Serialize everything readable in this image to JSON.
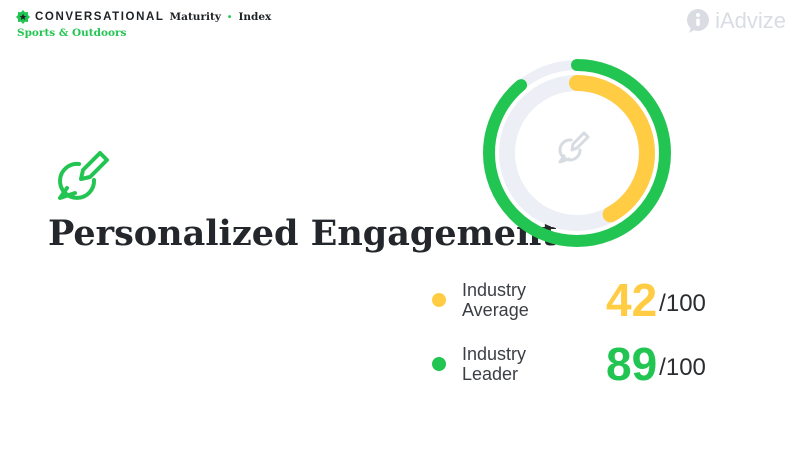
{
  "brand": {
    "name": "CONVERSATIONAL",
    "sub1": "Maturity",
    "separator": "•",
    "sub2": "Index",
    "category": "Sports & Outdoors"
  },
  "logo": {
    "text": "iAdvize"
  },
  "topic": {
    "title": "Personalized Engagement",
    "icon": "chat-pencil-icon"
  },
  "colors": {
    "average": "#ffcc44",
    "leader": "#23c552",
    "track": "#eceff5"
  },
  "chart_data": {
    "type": "radial-progress",
    "max": 100,
    "series": [
      {
        "name": "Industry Average",
        "value": 42
      },
      {
        "name": "Industry Leader",
        "value": 89
      }
    ]
  },
  "legend": [
    {
      "label_line1": "Industry",
      "label_line2": "Average",
      "value": "42",
      "max": "/100"
    },
    {
      "label_line1": "Industry",
      "label_line2": "Leader",
      "value": "89",
      "max": "/100"
    }
  ]
}
